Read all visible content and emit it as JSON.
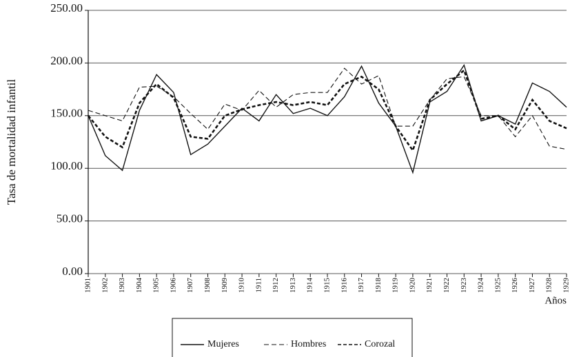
{
  "chart_data": {
    "type": "line",
    "ylabel": "Tasa de mortalidad infantil",
    "xlabel": "Años",
    "categories": [
      "1901",
      "1902",
      "1903",
      "1904",
      "1905",
      "1906",
      "1907",
      "1908",
      "1909",
      "1910",
      "1911",
      "1912",
      "1913",
      "1914",
      "1915",
      "1916",
      "1917",
      "1918",
      "1919",
      "1920",
      "1921",
      "1922",
      "1923",
      "1924",
      "1925",
      "1926",
      "1927",
      "1928",
      "1929"
    ],
    "series": [
      {
        "name": "Mujeres",
        "color": "#111111",
        "values": [
          150,
          112,
          98,
          155,
          189,
          172,
          113,
          123,
          140,
          157,
          145,
          170,
          152,
          157,
          150,
          168,
          197,
          162,
          140,
          96,
          163,
          173,
          198,
          145,
          150,
          142,
          181,
          173,
          158
        ]
      },
      {
        "name": "Hombres",
        "color": "#111111",
        "values": [
          155,
          150,
          145,
          177,
          178,
          168,
          152,
          137,
          161,
          155,
          174,
          158,
          170,
          172,
          172,
          195,
          180,
          188,
          140,
          140,
          165,
          185,
          187,
          150,
          150,
          130,
          150,
          121,
          118
        ]
      },
      {
        "name": "Corozal",
        "color": "#111111",
        "values": [
          150,
          130,
          120,
          162,
          180,
          167,
          130,
          128,
          150,
          156,
          160,
          163,
          160,
          163,
          160,
          180,
          187,
          175,
          140,
          117,
          165,
          180,
          193,
          147,
          150,
          137,
          165,
          145,
          138
        ]
      }
    ],
    "ylim": [
      0,
      250
    ],
    "yticks": [
      {
        "value": 0,
        "label": "0.00"
      },
      {
        "value": 50,
        "label": "50.00"
      },
      {
        "value": 100,
        "label": "100.00"
      },
      {
        "value": 150,
        "label": "150.00"
      },
      {
        "value": 200,
        "label": "200.00"
      },
      {
        "value": 250,
        "label": "250.00"
      }
    ],
    "grid": true,
    "legend": "bottom"
  }
}
